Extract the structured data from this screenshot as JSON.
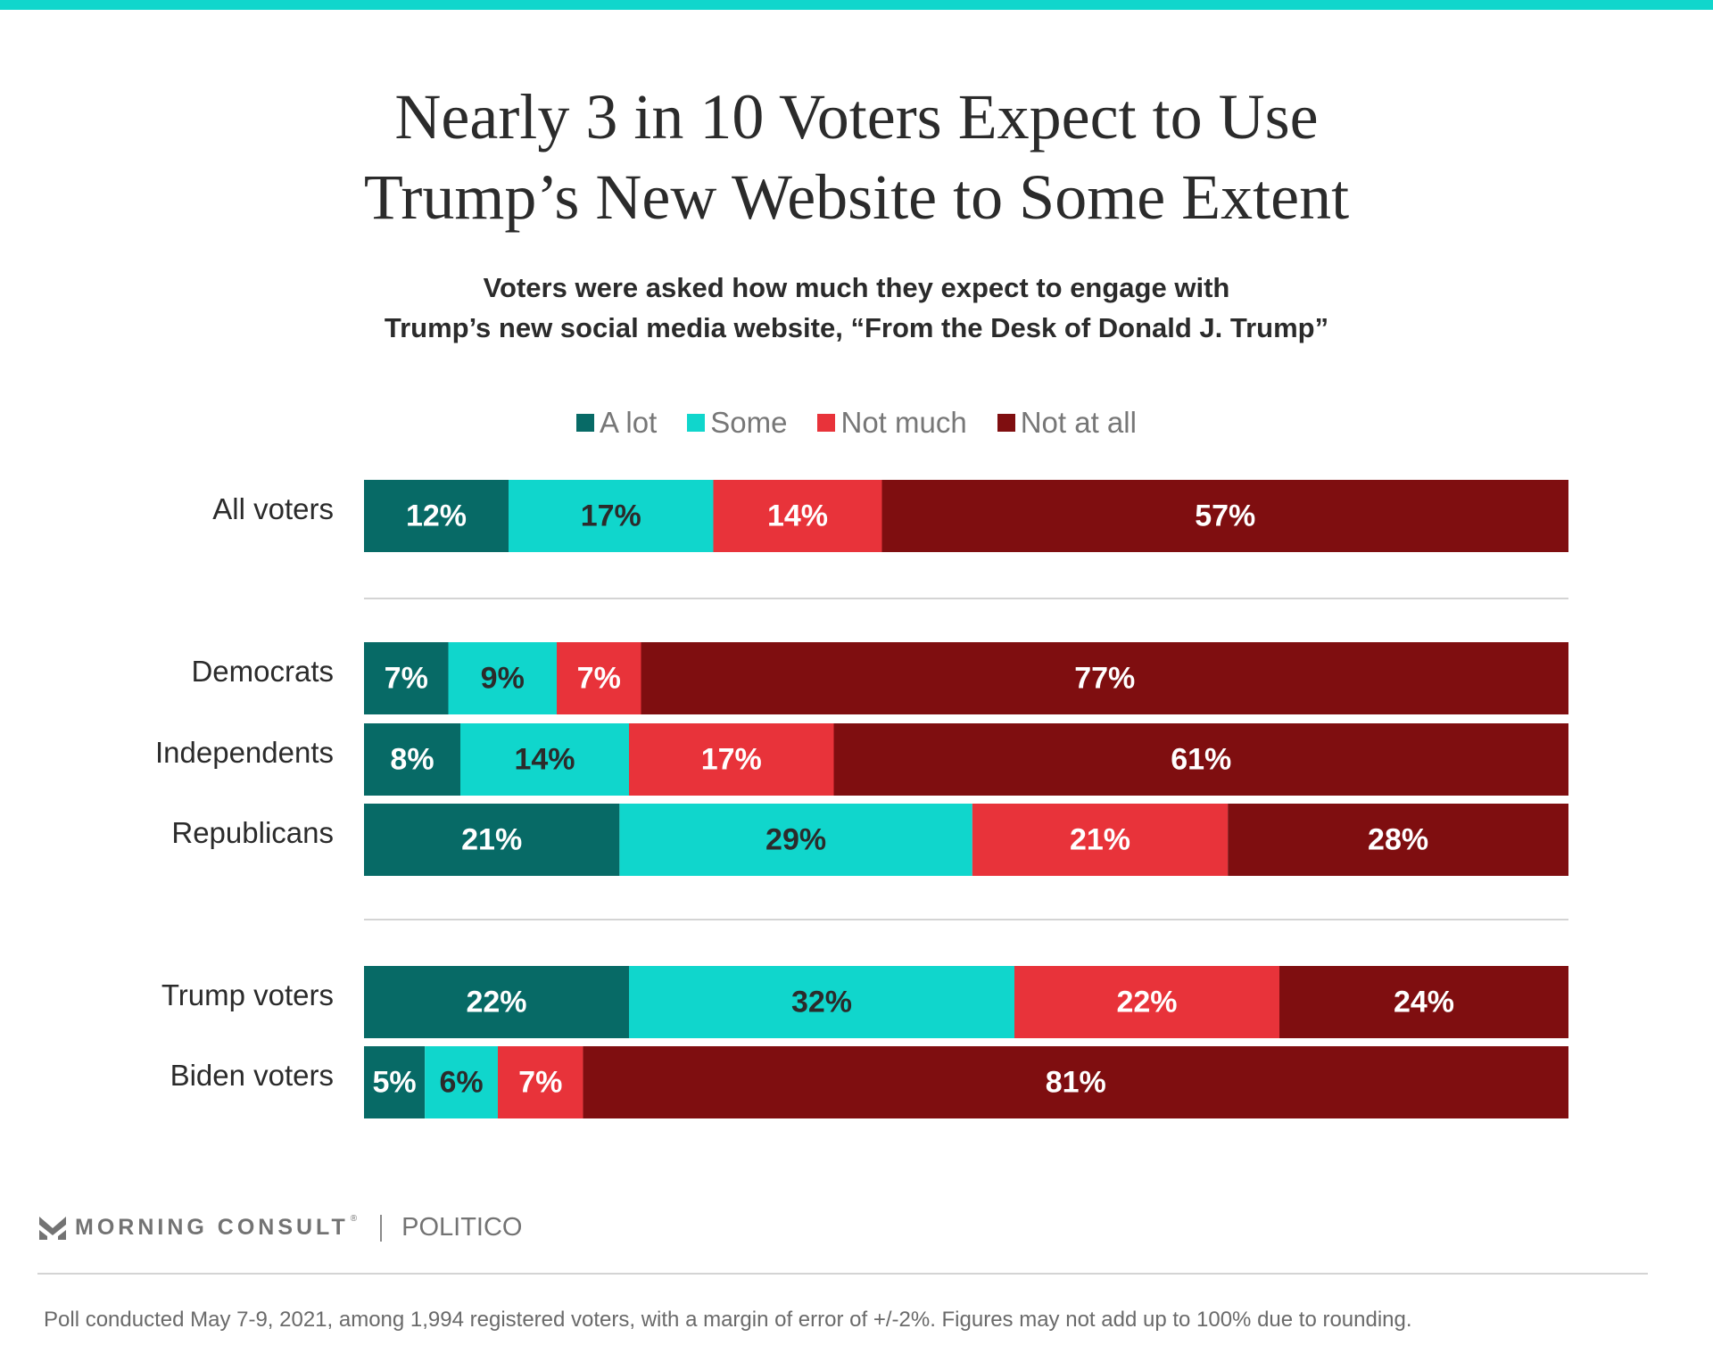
{
  "colors": {
    "top_bar": "#10d6cc",
    "a_lot": "#076a66",
    "some": "#10d6cc",
    "not_much": "#e8333a",
    "not_at_all": "#7f0e10",
    "divider": "#d4d4d4"
  },
  "header": {
    "title_line1": "Nearly 3 in 10 Voters Expect to Use",
    "title_line2": "Trump’s New Website to Some Extent",
    "subtitle_line1": "Voters were asked how much they expect to engage with",
    "subtitle_line2": "Trump’s new social media website, “From the Desk of Donald J. Trump”"
  },
  "chart_data": {
    "type": "bar",
    "orientation": "horizontal",
    "stacked": true,
    "title": "Nearly 3 in 10 Voters Expect to Use Trump’s New Website to Some Extent",
    "subtitle": "Voters were asked how much they expect to engage with Trump’s new social media website, “From the Desk of Donald J. Trump”",
    "xlabel": "",
    "ylabel": "",
    "xlim": [
      0,
      100
    ],
    "grid": false,
    "legend_position": "top-center",
    "legend": [
      "A lot",
      "Some",
      "Not much",
      "Not at all"
    ],
    "categories": [
      "All voters",
      "Democrats",
      "Independents",
      "Republicans",
      "Trump voters",
      "Biden voters"
    ],
    "groups": [
      [
        "All voters"
      ],
      [
        "Democrats",
        "Independents",
        "Republicans"
      ],
      [
        "Trump voters",
        "Biden voters"
      ]
    ],
    "series": [
      {
        "name": "A lot",
        "values": [
          12,
          7,
          8,
          21,
          22,
          5
        ],
        "label_color": "#ffffff"
      },
      {
        "name": "Some",
        "values": [
          17,
          9,
          14,
          29,
          32,
          6
        ],
        "label_color": "#2b2b2b"
      },
      {
        "name": "Not much",
        "values": [
          14,
          7,
          17,
          21,
          22,
          7
        ],
        "label_color": "#ffffff"
      },
      {
        "name": "Not at all",
        "values": [
          57,
          77,
          61,
          28,
          24,
          81
        ],
        "label_color": "#ffffff"
      }
    ],
    "value_suffix": "%"
  },
  "footer": {
    "brand": "MORNING CONSULT",
    "brand_mark": "®",
    "partner": "POLITICO",
    "note": "Poll conducted May 7-9, 2021, among 1,994 registered voters, with a margin of error of +/-2%. Figures may not add up to 100% due to rounding."
  }
}
